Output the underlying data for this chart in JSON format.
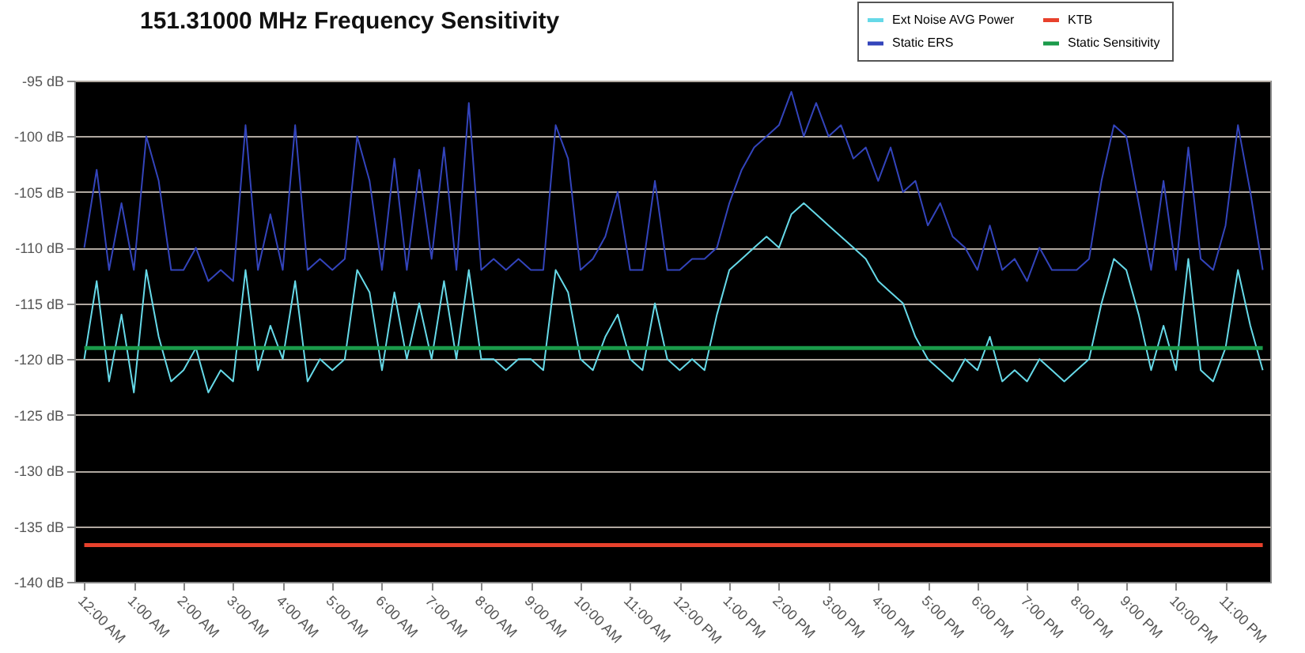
{
  "chart_data": {
    "type": "line",
    "title": "151.31000 MHz Frequency Sensitivity",
    "xlim": [
      -0.2,
      23.9
    ],
    "xticks": [
      {
        "value": 0,
        "label": "12:00 AM"
      },
      {
        "value": 1,
        "label": "1:00 AM"
      },
      {
        "value": 2,
        "label": "2:00 AM"
      },
      {
        "value": 3,
        "label": "3:00 AM"
      },
      {
        "value": 4,
        "label": "4:00 AM"
      },
      {
        "value": 5,
        "label": "5:00 AM"
      },
      {
        "value": 6,
        "label": "6:00 AM"
      },
      {
        "value": 7,
        "label": "7:00 AM"
      },
      {
        "value": 8,
        "label": "8:00 AM"
      },
      {
        "value": 9,
        "label": "9:00 AM"
      },
      {
        "value": 10,
        "label": "10:00 AM"
      },
      {
        "value": 11,
        "label": "11:00 AM"
      },
      {
        "value": 12,
        "label": "12:00 PM"
      },
      {
        "value": 13,
        "label": "1:00 PM"
      },
      {
        "value": 14,
        "label": "2:00 PM"
      },
      {
        "value": 15,
        "label": "3:00 PM"
      },
      {
        "value": 16,
        "label": "4:00 PM"
      },
      {
        "value": 17,
        "label": "5:00 PM"
      },
      {
        "value": 18,
        "label": "6:00 PM"
      },
      {
        "value": 19,
        "label": "7:00 PM"
      },
      {
        "value": 20,
        "label": "8:00 PM"
      },
      {
        "value": 21,
        "label": "9:00 PM"
      },
      {
        "value": 22,
        "label": "10:00 PM"
      },
      {
        "value": 23,
        "label": "11:00 PM"
      }
    ],
    "ylim": [
      -140,
      -95
    ],
    "yticks": [
      {
        "value": -140,
        "label": "-140 dB"
      },
      {
        "value": -135,
        "label": "-135 dB"
      },
      {
        "value": -130,
        "label": "-130 dB"
      },
      {
        "value": -125,
        "label": "-125 dB"
      },
      {
        "value": -120,
        "label": "-120 dB"
      },
      {
        "value": -115,
        "label": "-115 dB"
      },
      {
        "value": -110,
        "label": "-110 dB"
      },
      {
        "value": -105,
        "label": "-105 dB"
      },
      {
        "value": -100,
        "label": "-100 dB"
      },
      {
        "value": -95,
        "label": "-95 dB"
      }
    ],
    "x": [
      0,
      0.25,
      0.5,
      0.75,
      1,
      1.25,
      1.5,
      1.75,
      2,
      2.25,
      2.5,
      2.75,
      3,
      3.25,
      3.5,
      3.75,
      4,
      4.25,
      4.5,
      4.75,
      5,
      5.25,
      5.5,
      5.75,
      6,
      6.25,
      6.5,
      6.75,
      7,
      7.25,
      7.5,
      7.75,
      8,
      8.25,
      8.5,
      8.75,
      9,
      9.25,
      9.5,
      9.75,
      10,
      10.25,
      10.5,
      10.75,
      11,
      11.25,
      11.5,
      11.75,
      12,
      12.25,
      12.5,
      12.75,
      13,
      13.25,
      13.5,
      13.75,
      14,
      14.25,
      14.5,
      14.75,
      15,
      15.25,
      15.5,
      15.75,
      16,
      16.25,
      16.5,
      16.75,
      17,
      17.25,
      17.5,
      17.75,
      18,
      18.25,
      18.5,
      18.75,
      19,
      19.25,
      19.5,
      19.75,
      20,
      20.25,
      20.5,
      20.75,
      21,
      21.25,
      21.5,
      21.75,
      22,
      22.25,
      22.5,
      22.75,
      23,
      23.25,
      23.5,
      23.75
    ],
    "series": [
      {
        "name": "Ext Noise AVG Power",
        "color": "#66d9e8",
        "values": [
          -120,
          -113,
          -122,
          -116,
          -123,
          -112,
          -118,
          -122,
          -121,
          -119,
          -123,
          -121,
          -122,
          -112,
          -121,
          -117,
          -120,
          -113,
          -122,
          -120,
          -121,
          -120,
          -112,
          -114,
          -121,
          -114,
          -120,
          -115,
          -120,
          -113,
          -120,
          -112,
          -120,
          -120,
          -121,
          -120,
          -120,
          -121,
          -112,
          -114,
          -120,
          -121,
          -118,
          -116,
          -120,
          -121,
          -115,
          -120,
          -121,
          -120,
          -121,
          -116,
          -112,
          -111,
          -110,
          -109,
          -110,
          -107,
          -106,
          -107,
          -108,
          -109,
          -110,
          -111,
          -113,
          -114,
          -115,
          -118,
          -120,
          -121,
          -122,
          -120,
          -121,
          -118,
          -122,
          -121,
          -122,
          -120,
          -121,
          -122,
          -121,
          -120,
          -115,
          -111,
          -112,
          -116,
          -121,
          -117,
          -121,
          -111,
          -121,
          -122,
          -119,
          -112,
          -117,
          -121
        ]
      },
      {
        "name": "Static ERS",
        "color": "#3344bb",
        "values": [
          -110,
          -103,
          -112,
          -106,
          -112,
          -100,
          -104,
          -112,
          -112,
          -110,
          -113,
          -112,
          -113,
          -99,
          -112,
          -107,
          -112,
          -99,
          -112,
          -111,
          -112,
          -111,
          -100,
          -104,
          -112,
          -102,
          -112,
          -103,
          -111,
          -101,
          -112,
          -97,
          -112,
          -111,
          -112,
          -111,
          -112,
          -112,
          -99,
          -102,
          -112,
          -111,
          -109,
          -105,
          -112,
          -112,
          -104,
          -112,
          -112,
          -111,
          -111,
          -110,
          -106,
          -103,
          -101,
          -100,
          -99,
          -96,
          -100,
          -97,
          -100,
          -99,
          -102,
          -101,
          -104,
          -101,
          -105,
          -104,
          -108,
          -106,
          -109,
          -110,
          -112,
          -108,
          -112,
          -111,
          -113,
          -110,
          -112,
          -112,
          -112,
          -111,
          -104,
          -99,
          -100,
          -106,
          -112,
          -104,
          -112,
          -101,
          -111,
          -112,
          -108,
          -99,
          -105,
          -112
        ]
      },
      {
        "name": "KTB",
        "color": "#e8412c",
        "values": [
          -136.7,
          -136.7,
          -136.7,
          -136.7,
          -136.7,
          -136.7,
          -136.7,
          -136.7,
          -136.7,
          -136.7,
          -136.7,
          -136.7,
          -136.7,
          -136.7,
          -136.7,
          -136.7,
          -136.7,
          -136.7,
          -136.7,
          -136.7,
          -136.7,
          -136.7,
          -136.7,
          -136.7,
          -136.7,
          -136.7,
          -136.7,
          -136.7,
          -136.7,
          -136.7,
          -136.7,
          -136.7,
          -136.7,
          -136.7,
          -136.7,
          -136.7,
          -136.7,
          -136.7,
          -136.7,
          -136.7,
          -136.7,
          -136.7,
          -136.7,
          -136.7,
          -136.7,
          -136.7,
          -136.7,
          -136.7,
          -136.7,
          -136.7,
          -136.7,
          -136.7,
          -136.7,
          -136.7,
          -136.7,
          -136.7,
          -136.7,
          -136.7,
          -136.7,
          -136.7,
          -136.7,
          -136.7,
          -136.7,
          -136.7,
          -136.7,
          -136.7,
          -136.7,
          -136.7,
          -136.7,
          -136.7,
          -136.7,
          -136.7,
          -136.7,
          -136.7,
          -136.7,
          -136.7,
          -136.7,
          -136.7,
          -136.7,
          -136.7,
          -136.7,
          -136.7,
          -136.7,
          -136.7,
          -136.7,
          -136.7,
          -136.7,
          -136.7,
          -136.7,
          -136.7,
          -136.7,
          -136.7,
          -136.7,
          -136.7,
          -136.7,
          -136.7
        ]
      },
      {
        "name": "Static  Sensitivity",
        "color": "#1a9a4a",
        "values": [
          -119,
          -119,
          -119,
          -119,
          -119,
          -119,
          -119,
          -119,
          -119,
          -119,
          -119,
          -119,
          -119,
          -119,
          -119,
          -119,
          -119,
          -119,
          -119,
          -119,
          -119,
          -119,
          -119,
          -119,
          -119,
          -119,
          -119,
          -119,
          -119,
          -119,
          -119,
          -119,
          -119,
          -119,
          -119,
          -119,
          -119,
          -119,
          -119,
          -119,
          -119,
          -119,
          -119,
          -119,
          -119,
          -119,
          -119,
          -119,
          -119,
          -119,
          -119,
          -119,
          -119,
          -119,
          -119,
          -119,
          -119,
          -119,
          -119,
          -119,
          -119,
          -119,
          -119,
          -119,
          -119,
          -119,
          -119,
          -119,
          -119,
          -119,
          -119,
          -119,
          -119,
          -119,
          -119,
          -119,
          -119,
          -119,
          -119,
          -119,
          -119,
          -119,
          -119,
          -119,
          -119,
          -119,
          -119,
          -119,
          -119,
          -119,
          -119,
          -119,
          -119,
          -119,
          -119,
          -119
        ]
      }
    ],
    "grid": "y",
    "legend": "top right",
    "line_style": "solid",
    "marker": "none"
  }
}
